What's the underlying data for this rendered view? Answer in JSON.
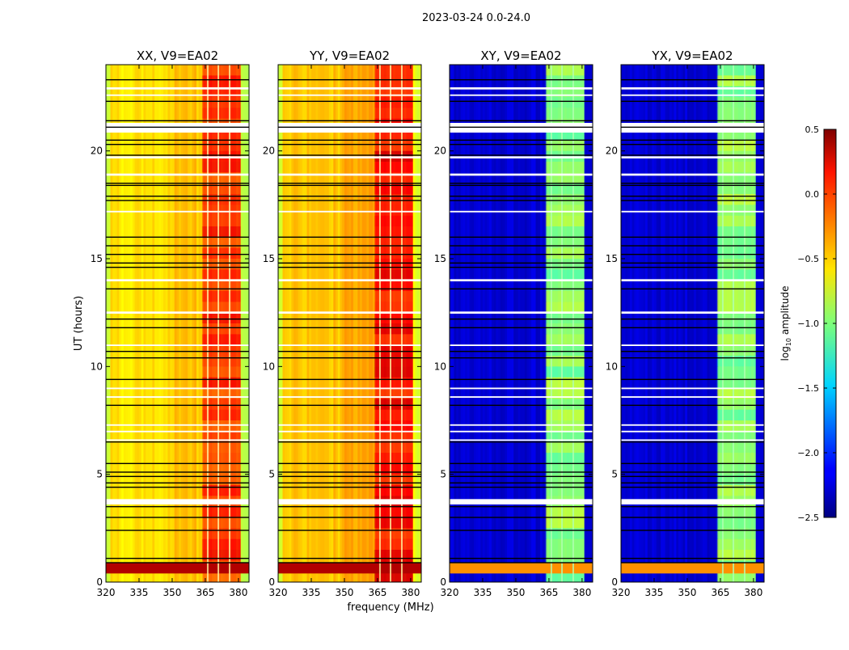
{
  "chart_data": {
    "type": "heatmap",
    "suptitle": "2023-03-24 0.0-24.0",
    "xlabel": "frequency (MHz)",
    "ylabel": "UT (hours)",
    "xlim": [
      320,
      384.8
    ],
    "ylim": [
      0,
      24
    ],
    "xticks": [
      "320",
      "335",
      "350",
      "365",
      "380"
    ],
    "yticks": [
      "0",
      "5",
      "10",
      "15",
      "20"
    ],
    "colorbar": {
      "label_main": "log",
      "label_sub": "10",
      "label_rest": " amplitude",
      "range": [
        -2.5,
        0.5
      ],
      "colormap": "jet",
      "ticks": [
        "0.5",
        "0.0",
        "−0.5",
        "−1.0",
        "−1.5",
        "−2.0",
        "−2.5"
      ]
    },
    "subband_gaps_mhz": [
      366.1,
      370.9,
      376.0
    ],
    "flagged_white_hours": [
      [
        22.85,
        22.95
      ],
      [
        22.55,
        22.62
      ],
      [
        20.85,
        21.3
      ],
      [
        19.65,
        19.75
      ],
      [
        18.85,
        18.95
      ],
      [
        17.15,
        17.22
      ],
      [
        13.95,
        14.05
      ],
      [
        12.45,
        12.55
      ],
      [
        10.95,
        11.02
      ],
      [
        8.95,
        9.02
      ],
      [
        8.55,
        8.62
      ],
      [
        7.25,
        7.32
      ],
      [
        6.95,
        7.02
      ],
      [
        6.55,
        6.62
      ],
      [
        3.6,
        3.85
      ]
    ],
    "flagged_black_hours": [
      23.3,
      22.3,
      21.4,
      21.1,
      20.5,
      20.3,
      19.8,
      18.5,
      18.4,
      17.9,
      17.7,
      16.0,
      15.6,
      15.2,
      14.8,
      14.6,
      13.6,
      12.2,
      11.8,
      10.7,
      10.4,
      9.4,
      8.2,
      6.5,
      5.5,
      5.1,
      4.9,
      4.6,
      4.4,
      3.5,
      3.0,
      2.4,
      1.1,
      0.9
    ],
    "panels": [
      {
        "title": "XX, V9=EA02",
        "spectrum": [
          [
            320,
            322,
            -0.8
          ],
          [
            322,
            350,
            -0.55
          ],
          [
            350,
            363.5,
            -0.45
          ],
          [
            363.5,
            381,
            -0.05
          ],
          [
            381,
            384.8,
            -0.8
          ]
        ],
        "low_band_value": 0.35
      },
      {
        "title": "YY, V9=EA02",
        "spectrum": [
          [
            320,
            322,
            -0.75
          ],
          [
            322,
            350,
            -0.45
          ],
          [
            350,
            363.5,
            -0.38
          ],
          [
            363.5,
            381,
            0.1
          ],
          [
            381,
            384.8,
            -0.7
          ]
        ],
        "low_band_value": 0.35
      },
      {
        "title": "XY, V9=EA02",
        "spectrum": [
          [
            320,
            363.5,
            -2.25
          ],
          [
            363.5,
            381,
            -0.95
          ],
          [
            381,
            384.8,
            -2.2
          ]
        ],
        "low_band_value": -0.3
      },
      {
        "title": "YX, V9=EA02",
        "spectrum": [
          [
            320,
            363.5,
            -2.25
          ],
          [
            363.5,
            381,
            -0.95
          ],
          [
            381,
            384.8,
            -2.2
          ]
        ],
        "low_band_value": -0.3
      }
    ]
  }
}
